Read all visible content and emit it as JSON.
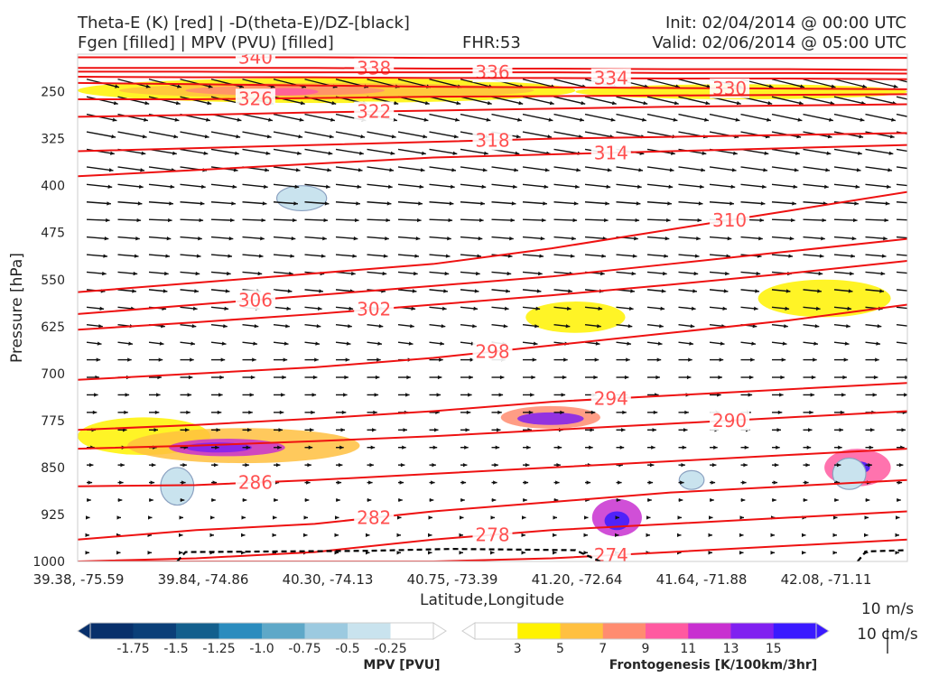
{
  "header": {
    "title_left_1": "Theta-E (K) [red] | -D(theta-E)/DZ-[black]",
    "title_left_2": "Fgen [filled] | MPV (PVU) [filled]",
    "fhr": "FHR:53",
    "init": "Init: 02/04/2014 @ 00:00 UTC",
    "valid": "Valid: 02/06/2014 @ 05:00 UTC"
  },
  "chart_data": {
    "type": "cross-section",
    "xlabel": "Latitude,Longitude",
    "ylabel": "Pressure [hPa]",
    "x_tick_labels": [
      "39.38, -75.59",
      "39.84, -74.86",
      "40.30, -74.13",
      "40.75, -73.39",
      "41.20, -72.64",
      "41.64, -71.88",
      "42.08, -71.11"
    ],
    "y_tick_labels": [
      "250",
      "325",
      "400",
      "475",
      "550",
      "625",
      "700",
      "775",
      "850",
      "925",
      "1000"
    ],
    "y_tick_values": [
      250,
      325,
      400,
      475,
      550,
      625,
      700,
      775,
      850,
      925,
      1000
    ],
    "ylim": [
      190,
      1000
    ],
    "theta_e_contours": [
      {
        "value": 340,
        "label": "340",
        "y": [
          195,
          195,
          195,
          196,
          196,
          196,
          196,
          196
        ]
      },
      {
        "value": 338,
        "label": "338",
        "y": [
          212,
          212,
          212,
          213,
          213,
          214,
          214,
          215
        ]
      },
      {
        "value": 336,
        "label": "336",
        "y": [
          218,
          218,
          219,
          219,
          219,
          220,
          220,
          221
        ]
      },
      {
        "value": 334,
        "label": "334",
        "y": [
          226,
          227,
          227,
          228,
          228,
          229,
          229,
          230
        ]
      },
      {
        "value": 330,
        "label": "330",
        "y": [
          236,
          238,
          240,
          242,
          243,
          244,
          245,
          246
        ]
      },
      {
        "value": 326,
        "label": "326",
        "y": [
          262,
          262,
          260,
          258,
          257,
          256,
          255,
          254
        ]
      },
      {
        "value": 322,
        "label": "322",
        "y": [
          290,
          287,
          283,
          280,
          277,
          274,
          272,
          270
        ]
      },
      {
        "value": 318,
        "label": "318",
        "y": [
          345,
          340,
          335,
          330,
          325,
          322,
          319,
          316
        ]
      },
      {
        "value": 314,
        "label": "314",
        "y": [
          385,
          375,
          365,
          355,
          350,
          345,
          340,
          335
        ]
      },
      {
        "value": 310,
        "label": "310",
        "y": [
          570,
          555,
          540,
          525,
          500,
          470,
          440,
          410
        ]
      },
      {
        "value": 306,
        "label": "306",
        "y": [
          605,
          590,
          575,
          560,
          545,
          525,
          505,
          485
        ]
      },
      {
        "value": 302,
        "label": "302",
        "y": [
          630,
          618,
          605,
          590,
          575,
          558,
          540,
          520
        ]
      },
      {
        "value": 298,
        "label": "298",
        "y": [
          710,
          700,
          690,
          675,
          655,
          635,
          615,
          590
        ]
      },
      {
        "value": 294,
        "label": "294",
        "y": [
          790,
          782,
          772,
          760,
          745,
          735,
          725,
          715
        ]
      },
      {
        "value": 290,
        "label": "290",
        "y": [
          820,
          815,
          808,
          800,
          790,
          780,
          770,
          760
        ]
      },
      {
        "value": 286,
        "label": "286",
        "y": [
          880,
          878,
          870,
          860,
          850,
          840,
          830,
          820
        ]
      },
      {
        "value": 282,
        "label": "282",
        "y": [
          965,
          950,
          940,
          920,
          905,
          890,
          880,
          870
        ]
      },
      {
        "value": 278,
        "label": "278",
        "y": [
          1000,
          995,
          985,
          965,
          950,
          940,
          930,
          920
        ]
      },
      {
        "value": 274,
        "label": "274",
        "y": [
          1000,
          1000,
          1000,
          1000,
          995,
          985,
          975,
          965
        ]
      }
    ],
    "fgen_regions": [
      {
        "cx": 0.3,
        "cy": 248,
        "rx": 0.3,
        "ry": 20,
        "level": 3
      },
      {
        "cx": 0.3,
        "cy": 248,
        "rx": 0.25,
        "ry": 12,
        "level": 5
      },
      {
        "cx": 0.25,
        "cy": 248,
        "rx": 0.12,
        "ry": 8,
        "level": 7
      },
      {
        "cx": 0.25,
        "cy": 250,
        "rx": 0.04,
        "ry": 6,
        "level": 9
      },
      {
        "cx": 0.8,
        "cy": 250,
        "rx": 0.2,
        "ry": 12,
        "level": 3
      },
      {
        "cx": 0.08,
        "cy": 800,
        "rx": 0.08,
        "ry": 30,
        "level": 3
      },
      {
        "cx": 0.2,
        "cy": 815,
        "rx": 0.14,
        "ry": 28,
        "level": 5
      },
      {
        "cx": 0.18,
        "cy": 818,
        "rx": 0.07,
        "ry": 14,
        "level": 11
      },
      {
        "cx": 0.17,
        "cy": 818,
        "rx": 0.04,
        "ry": 8,
        "level": 13
      },
      {
        "cx": 0.57,
        "cy": 770,
        "rx": 0.06,
        "ry": 18,
        "level": 7
      },
      {
        "cx": 0.57,
        "cy": 772,
        "rx": 0.04,
        "ry": 10,
        "level": 13
      },
      {
        "cx": 0.65,
        "cy": 930,
        "rx": 0.03,
        "ry": 30,
        "level": 11
      },
      {
        "cx": 0.65,
        "cy": 935,
        "rx": 0.015,
        "ry": 15,
        "level": 15
      },
      {
        "cx": 0.94,
        "cy": 850,
        "rx": 0.04,
        "ry": 30,
        "level": 9
      },
      {
        "cx": 0.94,
        "cy": 850,
        "rx": 0.015,
        "ry": 10,
        "level": 15
      },
      {
        "cx": 0.9,
        "cy": 580,
        "rx": 0.08,
        "ry": 30,
        "level": 3
      },
      {
        "cx": 0.6,
        "cy": 610,
        "rx": 0.06,
        "ry": 25,
        "level": 3
      }
    ],
    "mpv_regions": [
      {
        "cx": 0.27,
        "cy": 420,
        "rx": 0.03,
        "ry": 20,
        "level": -0.25
      },
      {
        "cx": 0.12,
        "cy": 880,
        "rx": 0.02,
        "ry": 30,
        "level": -0.25
      },
      {
        "cx": 0.74,
        "cy": 870,
        "rx": 0.015,
        "ry": 15,
        "level": -0.25
      },
      {
        "cx": 0.93,
        "cy": 860,
        "rx": 0.02,
        "ry": 25,
        "level": -0.25
      }
    ],
    "zero_contour_label": "dashed black contour near surface",
    "mpv_colorbar": {
      "label": "MPV [PVU]",
      "ticks": [
        "-1.75",
        "-1.5",
        "-1.25",
        "-1.0",
        "-0.75",
        "-0.5",
        "-0.25"
      ],
      "colors": [
        "#08306b",
        "#0b3f78",
        "#135f8d",
        "#2b8cbe",
        "#5ea8c8",
        "#9ccae0",
        "#c9e3ee",
        "#ffffff"
      ]
    },
    "fgen_colorbar": {
      "label": "Frontogenesis [K/100km/3hr]",
      "ticks": [
        "3",
        "5",
        "7",
        "9",
        "11",
        "13",
        "15"
      ],
      "colors": [
        "#ffffff",
        "#fff200",
        "#ffc040",
        "#ff8c70",
        "#ff5aa0",
        "#c830d0",
        "#8020f0",
        "#3a1aff"
      ]
    },
    "vector_key": {
      "wind": "10 m/s",
      "vertical": "10 cm/s"
    }
  }
}
